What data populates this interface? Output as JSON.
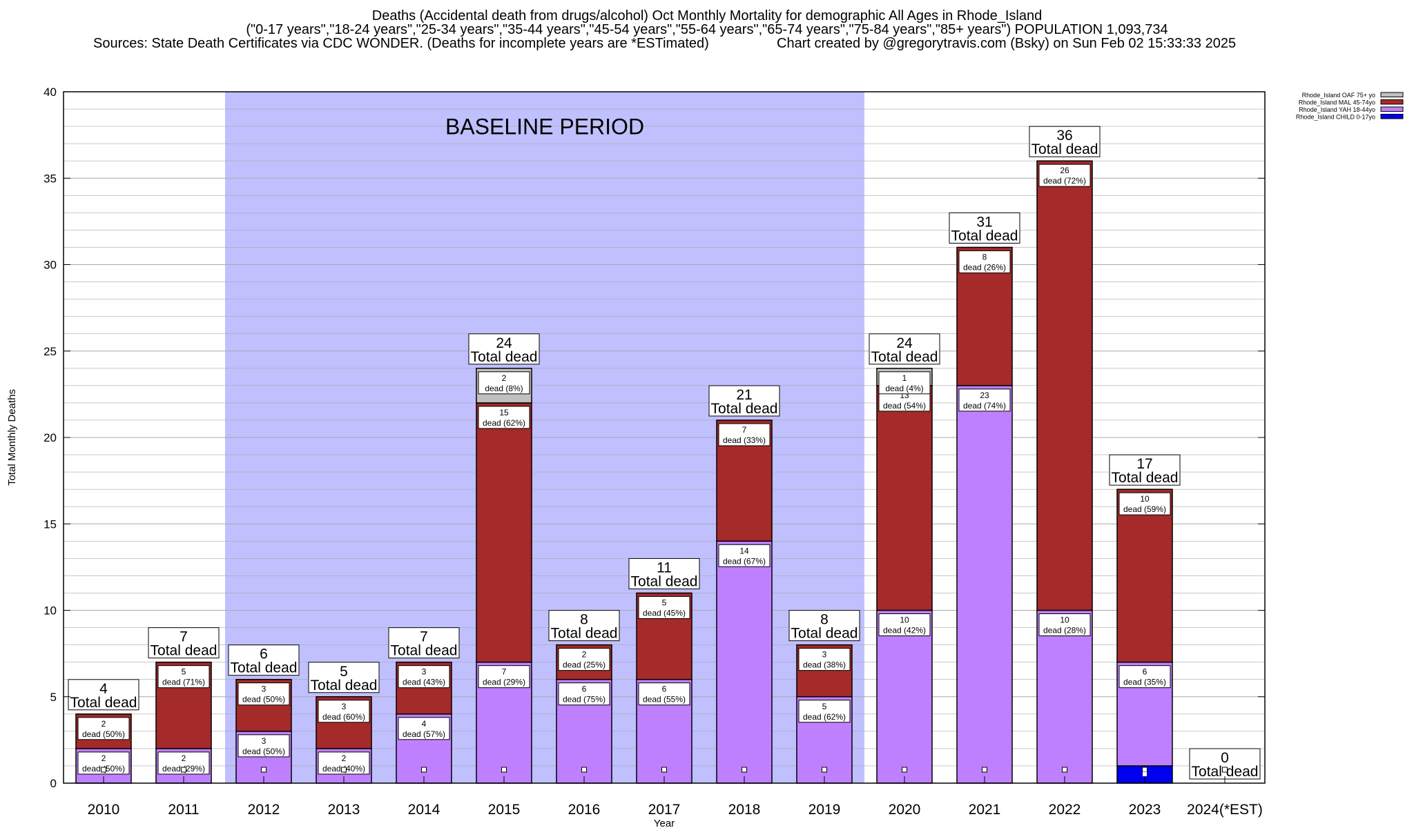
{
  "header": {
    "title_line1": "Deaths (Accidental death from drugs/alcohol) Oct Monthly Mortality for demographic All Ages in Rhode_Island",
    "title_line2": "(\"0-17 years\",\"18-24 years\",\"25-34 years\",\"35-44 years\",\"45-54 years\",\"55-64 years\",\"65-74 years\",\"75-84 years\",\"85+ years\") POPULATION 1,093,734",
    "sources": "Sources: State Death Certificates via CDC WONDER. (Deaths for incomplete years are *ESTimated)",
    "credit": "Chart created by @gregorytravis.com (Bsky) on Sun Feb 02 15:33:33 2025"
  },
  "chart_data": {
    "type": "bar",
    "stacked": true,
    "xlabel": "Year",
    "ylabel": "Total Monthly Deaths",
    "ylim": [
      0,
      40
    ],
    "y_ticks": [
      0,
      5,
      10,
      15,
      20,
      25,
      30,
      35,
      40
    ],
    "grid": true,
    "legend_position": "top-right",
    "categories": [
      "2010",
      "2011",
      "2012",
      "2013",
      "2014",
      "2015",
      "2016",
      "2017",
      "2018",
      "2019",
      "2020",
      "2021",
      "2022",
      "2023",
      "2024(*EST)"
    ],
    "series": [
      {
        "name": "Rhode_Island CHILD 0-17yo",
        "color": "#0000ee",
        "values": [
          0,
          0,
          0,
          0,
          0,
          0,
          0,
          0,
          0,
          0,
          0,
          0,
          0,
          1,
          0
        ]
      },
      {
        "name": "Rhode_Island YAH 18-44yo",
        "color": "#bf80ff",
        "values": [
          2,
          2,
          3,
          2,
          4,
          7,
          6,
          6,
          14,
          5,
          10,
          23,
          10,
          6,
          0
        ]
      },
      {
        "name": "Rhode_Island MAL 45-74yo",
        "color": "#a52a2a",
        "values": [
          2,
          5,
          3,
          3,
          3,
          15,
          2,
          5,
          7,
          3,
          13,
          8,
          26,
          10,
          0
        ]
      },
      {
        "name": "Rhode_Island OAF 75+ yo",
        "color": "#c0c0c0",
        "values": [
          0,
          0,
          0,
          0,
          0,
          2,
          0,
          0,
          0,
          0,
          1,
          0,
          0,
          0,
          0
        ]
      }
    ],
    "segment_labels": [
      [
        {
          "series": 1,
          "num": "2",
          "pct": "dead (50%)"
        },
        {
          "series": 2,
          "num": "2",
          "pct": "dead (50%)"
        }
      ],
      [
        {
          "series": 1,
          "num": "2",
          "pct": "dead (29%)"
        },
        {
          "series": 2,
          "num": "5",
          "pct": "dead (71%)"
        }
      ],
      [
        {
          "series": 1,
          "num": "3",
          "pct": "dead (50%)"
        },
        {
          "series": 2,
          "num": "3",
          "pct": "dead (50%)"
        }
      ],
      [
        {
          "series": 1,
          "num": "2",
          "pct": "dead (40%)"
        },
        {
          "series": 2,
          "num": "3",
          "pct": "dead (60%)"
        }
      ],
      [
        {
          "series": 1,
          "num": "4",
          "pct": "dead (57%)"
        },
        {
          "series": 2,
          "num": "3",
          "pct": "dead (43%)"
        }
      ],
      [
        {
          "series": 1,
          "num": "7",
          "pct": "dead (29%)"
        },
        {
          "series": 2,
          "num": "15",
          "pct": "dead (62%)"
        },
        {
          "series": 3,
          "num": "2",
          "pct": "dead (8%)"
        }
      ],
      [
        {
          "series": 1,
          "num": "6",
          "pct": "dead (75%)"
        },
        {
          "series": 2,
          "num": "2",
          "pct": "dead (25%)"
        }
      ],
      [
        {
          "series": 1,
          "num": "6",
          "pct": "dead (55%)"
        },
        {
          "series": 2,
          "num": "5",
          "pct": "dead (45%)"
        }
      ],
      [
        {
          "series": 1,
          "num": "14",
          "pct": "dead (67%)"
        },
        {
          "series": 2,
          "num": "7",
          "pct": "dead (33%)"
        }
      ],
      [
        {
          "series": 1,
          "num": "5",
          "pct": "dead (62%)"
        },
        {
          "series": 2,
          "num": "3",
          "pct": "dead (38%)"
        }
      ],
      [
        {
          "series": 1,
          "num": "10",
          "pct": "dead (42%)"
        },
        {
          "series": 2,
          "num": "13",
          "pct": "dead (54%)"
        },
        {
          "series": 3,
          "num": "1",
          "pct": "dead (4%)"
        }
      ],
      [
        {
          "series": 1,
          "num": "23",
          "pct": "dead (74%)"
        },
        {
          "series": 2,
          "num": "8",
          "pct": "dead (26%)"
        }
      ],
      [
        {
          "series": 1,
          "num": "10",
          "pct": "dead (28%)"
        },
        {
          "series": 2,
          "num": "26",
          "pct": "dead (72%)"
        }
      ],
      [
        {
          "series": 1,
          "num": "6",
          "pct": "dead (35%)"
        },
        {
          "series": 2,
          "num": "10",
          "pct": "dead (59%)"
        }
      ],
      []
    ],
    "totals": [
      "4",
      "7",
      "6",
      "5",
      "7",
      "24",
      "8",
      "11",
      "21",
      "8",
      "24",
      "31",
      "36",
      "17",
      "0"
    ],
    "total_caption": "Total dead",
    "annotation": {
      "text": "BASELINE PERIOD",
      "start_category": "2012",
      "end_category": "2019",
      "color": "#c0c0ff"
    }
  }
}
